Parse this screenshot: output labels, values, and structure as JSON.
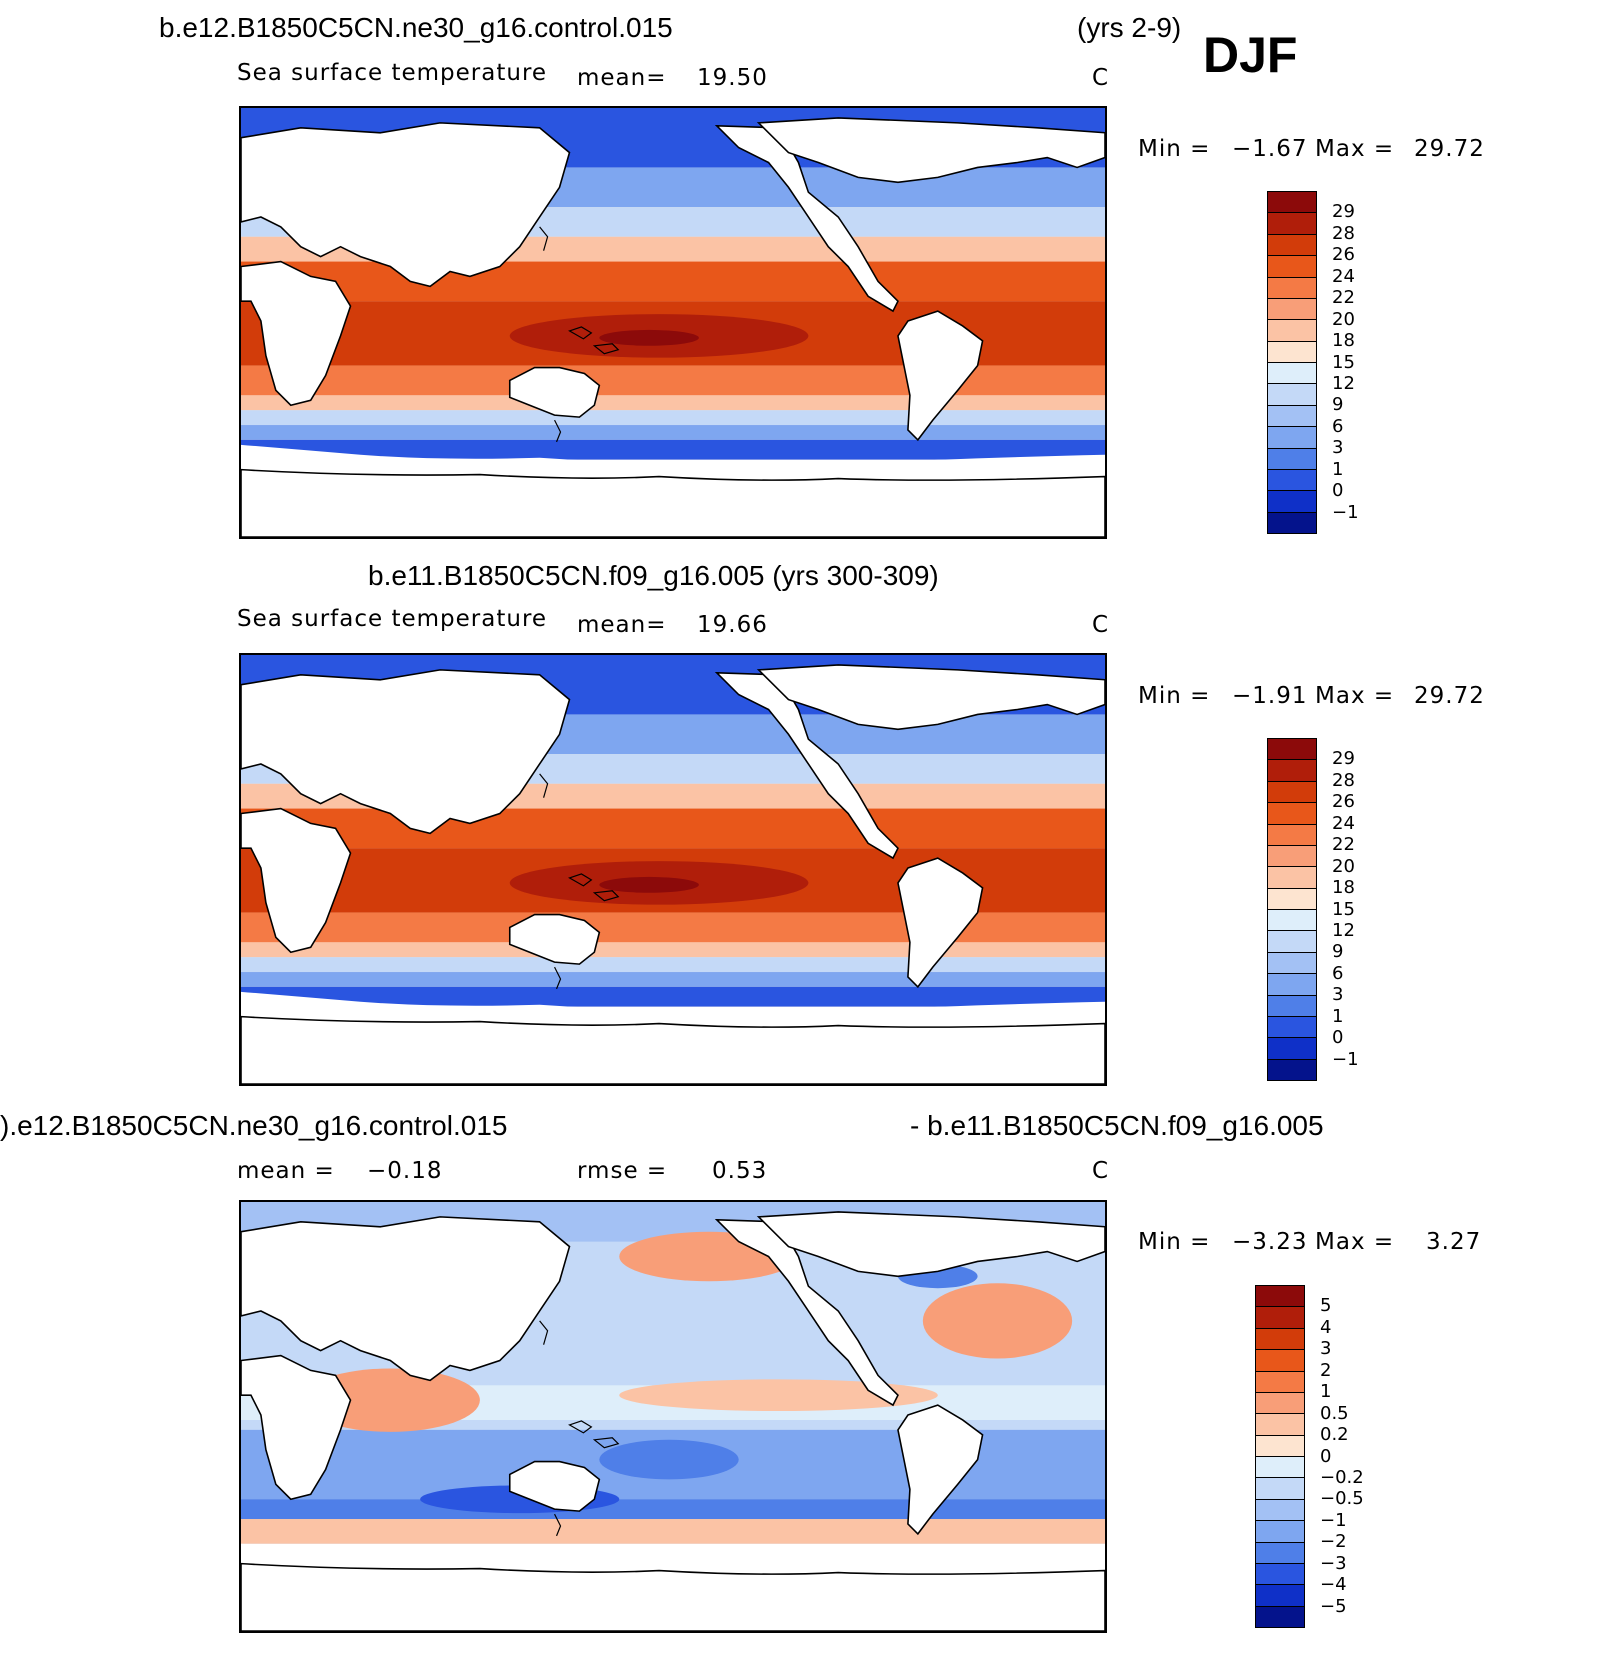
{
  "season": "DJF",
  "panels": [
    {
      "case_left": "b.e12.B1850C5CN.ne30_g16.control.015",
      "case_right": "(yrs 2-9)",
      "variable": "Sea surface temperature",
      "stat_label": "mean=",
      "stat_value": "19.50",
      "units": "C",
      "min_label": "Min =",
      "min_value": "−1.67",
      "max_label": "Max =",
      "max_value": "29.72",
      "colorbar": {
        "labels": [
          "29",
          "28",
          "26",
          "24",
          "22",
          "20",
          "18",
          "15",
          "12",
          "9",
          "6",
          "3",
          "1",
          "0",
          "−1"
        ],
        "colors": [
          "#8c0a0a",
          "#b01e0a",
          "#d23c0a",
          "#e8571a",
          "#f47a45",
          "#f89e78",
          "#fbc3a5",
          "#fde4d0",
          "#deeefa",
          "#c4d9f7",
          "#a3c1f4",
          "#7ea6f0",
          "#4f7fe8",
          "#2a55e0",
          "#0f30c8",
          "#04138c"
        ]
      }
    },
    {
      "case_left": "b.e11.B1850C5CN.f09_g16.005 (yrs 300-309)",
      "variable": "Sea surface temperature",
      "stat_label": "mean=",
      "stat_value": "19.66",
      "units": "C",
      "min_label": "Min =",
      "min_value": "−1.91",
      "max_label": "Max =",
      "max_value": "29.72",
      "colorbar": {
        "labels": [
          "29",
          "28",
          "26",
          "24",
          "22",
          "20",
          "18",
          "15",
          "12",
          "9",
          "6",
          "3",
          "1",
          "0",
          "−1"
        ],
        "colors": [
          "#8c0a0a",
          "#b01e0a",
          "#d23c0a",
          "#e8571a",
          "#f47a45",
          "#f89e78",
          "#fbc3a5",
          "#fde4d0",
          "#deeefa",
          "#c4d9f7",
          "#a3c1f4",
          "#7ea6f0",
          "#4f7fe8",
          "#2a55e0",
          "#0f30c8",
          "#04138c"
        ]
      }
    },
    {
      "case_left": ").e12.B1850C5CN.ne30_g16.control.015",
      "case_right": "- b.e11.B1850C5CN.f09_g16.005",
      "mean_label": "mean =",
      "mean_value": "−0.18",
      "rmse_label": "rmse =",
      "rmse_value": "0.53",
      "units": "C",
      "min_label": "Min =",
      "min_value": "−3.23",
      "max_label": "Max =",
      "max_value": "3.27",
      "colorbar": {
        "labels": [
          "5",
          "4",
          "3",
          "2",
          "1",
          "0.5",
          "0.2",
          "0",
          "−0.2",
          "−0.5",
          "−1",
          "−2",
          "−3",
          "−4",
          "−5"
        ],
        "colors": [
          "#8c0a0a",
          "#b01e0a",
          "#d23c0a",
          "#e8571a",
          "#f47a45",
          "#f89e78",
          "#fbc3a5",
          "#fde4d0",
          "#deeefa",
          "#c4d9f7",
          "#a3c1f4",
          "#7ea6f0",
          "#4f7fe8",
          "#2a55e0",
          "#0f30c8",
          "#04138c"
        ]
      }
    }
  ]
}
